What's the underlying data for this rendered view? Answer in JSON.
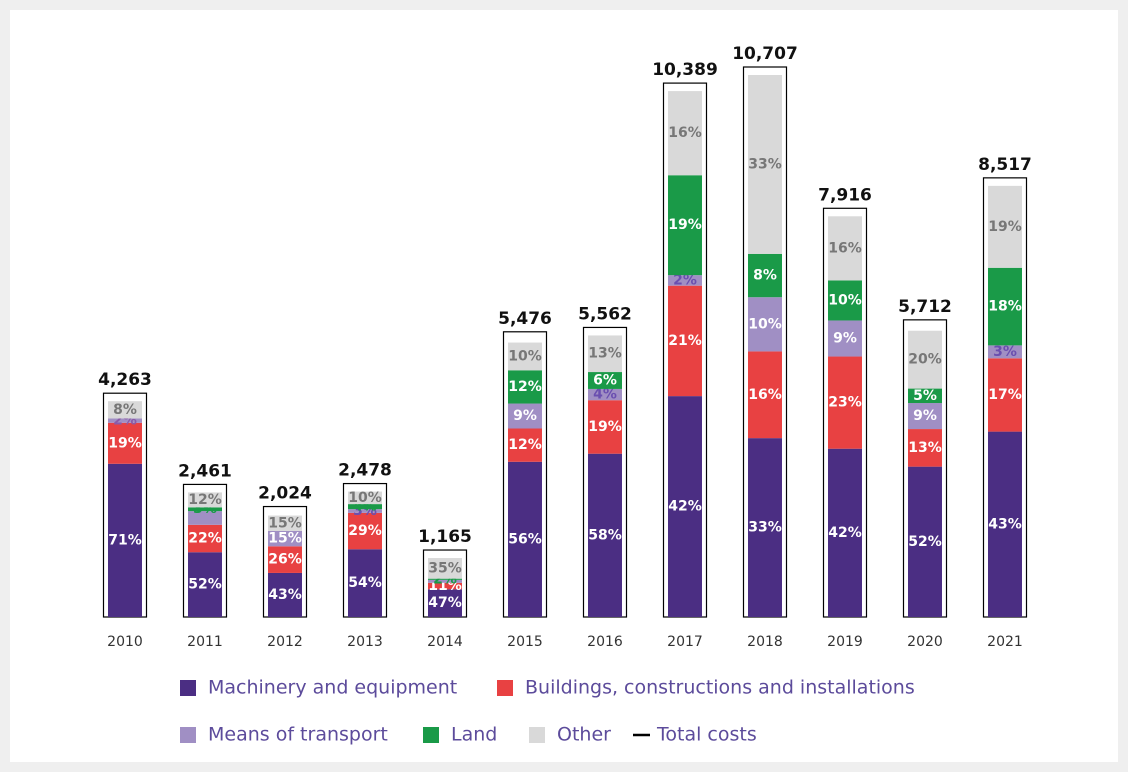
{
  "chart_data": {
    "type": "stacked-bar",
    "categories": [
      "2010",
      "2011",
      "2012",
      "2013",
      "2014",
      "2015",
      "2016",
      "2017",
      "2018",
      "2019",
      "2020",
      "2021"
    ],
    "series": [
      {
        "name": "Machinery and equipment",
        "color": "#4b2e83",
        "values": [
          71,
          52,
          43,
          54,
          47,
          56,
          58,
          42,
          33,
          42,
          52,
          43
        ],
        "value_labels": [
          "71%",
          "52%",
          "43%",
          "54%",
          "47%",
          "56%",
          "58%",
          "42%",
          "33%",
          "42%",
          "52%",
          "43%"
        ]
      },
      {
        "name": "Buildings, constructions and installations",
        "color": "#e84142",
        "values": [
          19,
          22,
          26,
          29,
          11,
          12,
          19,
          21,
          16,
          23,
          13,
          17
        ],
        "value_labels": [
          "19%",
          "22%",
          "26%",
          "29%",
          "11%",
          "12%",
          "19%",
          "21%",
          "16%",
          "23%",
          "13%",
          "17%"
        ]
      },
      {
        "name": "Means of transport",
        "color": "#a08fc4",
        "values": [
          2,
          11,
          15,
          3,
          5,
          9,
          4,
          2,
          10,
          9,
          9,
          3
        ],
        "value_labels": [
          "2%",
          null,
          "15%",
          "3%",
          null,
          "9%",
          "4%",
          "2%",
          "10%",
          "9%",
          "9%",
          "3%"
        ]
      },
      {
        "name": "Land",
        "color": "#1a9a48",
        "values": [
          null,
          3,
          null,
          4,
          2,
          12,
          6,
          19,
          8,
          10,
          5,
          18
        ],
        "value_labels": [
          null,
          "3%",
          null,
          "4%",
          "2%",
          "12%",
          "6%",
          "19%",
          "8%",
          "10%",
          "5%",
          "18%"
        ]
      },
      {
        "name": "Other",
        "color": "#d9d9d9",
        "values": [
          8,
          12,
          15,
          10,
          35,
          10,
          13,
          16,
          33,
          16,
          20,
          19
        ],
        "value_labels": [
          "8%",
          "12%",
          "15%",
          "10%",
          "35%",
          "10%",
          "13%",
          "16%",
          "33%",
          "16%",
          "20%",
          "19%"
        ]
      }
    ],
    "total": {
      "name": "Total costs",
      "color": "#000000",
      "values": [
        4263,
        2461,
        2024,
        2478,
        1165,
        5476,
        5562,
        10389,
        10707,
        7916,
        5712,
        8517
      ],
      "value_labels": [
        "4,263",
        "2,461",
        "2,024",
        "2,478",
        "1,165",
        "5,476",
        "5,562",
        "10,389",
        "10,707",
        "7,916",
        "5,712",
        "8,517"
      ]
    }
  }
}
